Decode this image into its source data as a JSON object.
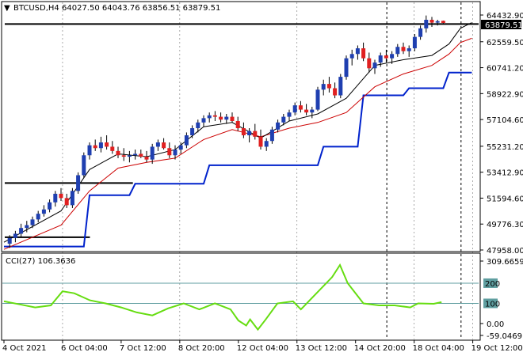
{
  "header": {
    "symbol_label": "BTCUSD,H4",
    "ohlc_text": "64027.50 64043.76 63856.51 63879.51",
    "cci_label": "CCI(27) 106.3636"
  },
  "colors": {
    "bull_body": "#1f3fb0",
    "bear_body": "#e02020",
    "wick": "#000000",
    "ma_fast": "#000000",
    "ma_slow": "#cc0000",
    "trail": "#0022cc",
    "cci_line": "#66dd11",
    "cci_level": "#5f9ea0",
    "grid": "#000000"
  },
  "chart_data": [
    {
      "type": "candlestick",
      "title": "BTCUSD,H4",
      "x_tick_labels": [
        "4 Oct 2021",
        "6 Oct 04:00",
        "7 Oct 12:00",
        "8 Oct 20:00",
        "12 Oct 04:00",
        "13 Oct 12:00",
        "14 Oct 20:00",
        "18 Oct 04:00",
        "19 Oct 12:00"
      ],
      "x_tick_indices": [
        0,
        15,
        30,
        45,
        60,
        75,
        90,
        105,
        120
      ],
      "y_tick_labels": [
        "64432.90",
        "62559.50",
        "60741.20",
        "58922.90",
        "57104.60",
        "55231.20",
        "53412.90",
        "51594.60",
        "49776.30",
        "47958.00"
      ],
      "ylim": [
        47958.0,
        64432.9
      ],
      "current_price_label": "63879.51",
      "current_price": 63879.51,
      "h_lines": [
        {
          "value": 63800,
          "x_from": 0,
          "x_to": 135
        },
        {
          "value": 52650,
          "x_from": 0,
          "x_to": 33
        },
        {
          "value": 48850,
          "x_from": 0,
          "x_to": 22
        }
      ],
      "v_grid_indices": [
        15,
        45,
        75,
        105,
        120
      ],
      "v_emphasis_indices": [
        98,
        117
      ],
      "candles": [
        [
          48400,
          49000,
          48100,
          48800
        ],
        [
          48800,
          49300,
          48500,
          49100
        ],
        [
          49100,
          49800,
          48900,
          49500
        ],
        [
          49500,
          50000,
          49200,
          49700
        ],
        [
          49700,
          50300,
          49500,
          50100
        ],
        [
          50100,
          50700,
          49900,
          50500
        ],
        [
          50500,
          51100,
          50300,
          50800
        ],
        [
          50800,
          51500,
          50600,
          51300
        ],
        [
          51300,
          52100,
          51000,
          51900
        ],
        [
          51900,
          52300,
          51400,
          51600
        ],
        [
          51600,
          51900,
          50900,
          51100
        ],
        [
          51100,
          52300,
          50900,
          52100
        ],
        [
          52100,
          53400,
          51900,
          53200
        ],
        [
          53200,
          54800,
          53000,
          54600
        ],
        [
          54600,
          55500,
          54300,
          55300
        ],
        [
          55300,
          55700,
          54900,
          55100
        ],
        [
          55100,
          55900,
          54800,
          55500
        ],
        [
          55500,
          56000,
          55000,
          55200
        ],
        [
          55200,
          55600,
          54700,
          54900
        ],
        [
          54900,
          55200,
          54400,
          54600
        ],
        [
          54600,
          55100,
          54200,
          54500
        ],
        [
          54500,
          54900,
          54100,
          54600
        ],
        [
          54600,
          55000,
          54300,
          54700
        ],
        [
          54700,
          55000,
          54400,
          54500
        ],
        [
          54500,
          54900,
          54100,
          54300
        ],
        [
          54300,
          55400,
          54000,
          55200
        ],
        [
          55200,
          55700,
          54900,
          55500
        ],
        [
          55500,
          55800,
          55000,
          55100
        ],
        [
          55100,
          55500,
          54400,
          54600
        ],
        [
          54600,
          55300,
          54300,
          55000
        ],
        [
          55000,
          55500,
          54700,
          55300
        ],
        [
          55300,
          56200,
          55100,
          56000
        ],
        [
          56000,
          56700,
          55800,
          56500
        ],
        [
          56500,
          57100,
          56200,
          56900
        ],
        [
          56900,
          57400,
          56600,
          57200
        ],
        [
          57200,
          57600,
          56900,
          57400
        ],
        [
          57400,
          57700,
          57000,
          57300
        ],
        [
          57300,
          57600,
          56900,
          57100
        ],
        [
          57100,
          57500,
          56800,
          57300
        ],
        [
          57300,
          57600,
          56900,
          57000
        ],
        [
          57000,
          57300,
          56300,
          56500
        ],
        [
          56500,
          56900,
          55800,
          56000
        ],
        [
          56000,
          56500,
          55500,
          56300
        ],
        [
          56300,
          56800,
          55700,
          55900
        ],
        [
          55900,
          56400,
          55000,
          55200
        ],
        [
          55200,
          55800,
          54900,
          55600
        ],
        [
          55600,
          56600,
          55400,
          56400
        ],
        [
          56400,
          57100,
          56200,
          56900
        ],
        [
          56900,
          57500,
          56700,
          57300
        ],
        [
          57300,
          57800,
          57000,
          57600
        ],
        [
          57600,
          58300,
          57400,
          58100
        ],
        [
          58100,
          58400,
          57600,
          57800
        ],
        [
          57800,
          58200,
          57400,
          57600
        ],
        [
          57600,
          58000,
          57200,
          57800
        ],
        [
          57800,
          59400,
          57700,
          59200
        ],
        [
          59200,
          59900,
          58800,
          59600
        ],
        [
          59600,
          60100,
          59000,
          59300
        ],
        [
          59300,
          59700,
          58600,
          58800
        ],
        [
          58800,
          60300,
          58600,
          60100
        ],
        [
          60100,
          61600,
          59900,
          61400
        ],
        [
          61400,
          62000,
          60900,
          61700
        ],
        [
          61700,
          62300,
          61300,
          62100
        ],
        [
          62100,
          62500,
          61200,
          61400
        ],
        [
          61400,
          61800,
          60400,
          60700
        ],
        [
          60700,
          61300,
          60300,
          61100
        ],
        [
          61100,
          61800,
          60800,
          61600
        ],
        [
          61600,
          62000,
          61100,
          61400
        ],
        [
          61400,
          61900,
          61000,
          61700
        ],
        [
          61700,
          62400,
          61500,
          62200
        ],
        [
          62200,
          62500,
          61700,
          61900
        ],
        [
          61900,
          62300,
          61500,
          62100
        ],
        [
          62100,
          63100,
          61900,
          62900
        ],
        [
          62900,
          63700,
          62700,
          63500
        ],
        [
          63500,
          64400,
          63200,
          64100
        ],
        [
          64100,
          64300,
          63600,
          63900
        ],
        [
          63900,
          64100,
          63700,
          64000
        ],
        [
          64027.5,
          64043.76,
          63856.51,
          63879.51
        ]
      ],
      "candle_x_indices": [
        1,
        2,
        3,
        4,
        5,
        6,
        7,
        8,
        9,
        10,
        11,
        12,
        13,
        14,
        15,
        16,
        17,
        18,
        19,
        20,
        21,
        22,
        23,
        24,
        25,
        26,
        27,
        28,
        29,
        30,
        31,
        32,
        33,
        34,
        35,
        36,
        37,
        38,
        39,
        40,
        41,
        42,
        43,
        44,
        45,
        46,
        47,
        48,
        49,
        50,
        51,
        52,
        53,
        54,
        55,
        56,
        57,
        58,
        59,
        60,
        61,
        62,
        63,
        64,
        65,
        66,
        67,
        68,
        69,
        70,
        71,
        72,
        73,
        74,
        75,
        76,
        77
      ],
      "ma_fast": [
        [
          0,
          48500
        ],
        [
          10,
          50700
        ],
        [
          15,
          53600
        ],
        [
          20,
          54700
        ],
        [
          25,
          54500
        ],
        [
          30,
          55000
        ],
        [
          35,
          56600
        ],
        [
          40,
          56900
        ],
        [
          45,
          55800
        ],
        [
          50,
          57000
        ],
        [
          55,
          57500
        ],
        [
          60,
          58600
        ],
        [
          65,
          60900
        ],
        [
          70,
          61300
        ],
        [
          75,
          61600
        ],
        [
          78,
          62400
        ],
        [
          80,
          63500
        ],
        [
          82,
          63900
        ]
      ],
      "ma_slow": [
        [
          0,
          48000
        ],
        [
          10,
          49700
        ],
        [
          15,
          52100
        ],
        [
          20,
          53700
        ],
        [
          25,
          54100
        ],
        [
          30,
          54400
        ],
        [
          35,
          55700
        ],
        [
          40,
          56400
        ],
        [
          45,
          55900
        ],
        [
          50,
          56500
        ],
        [
          55,
          56900
        ],
        [
          60,
          57600
        ],
        [
          65,
          59400
        ],
        [
          70,
          60300
        ],
        [
          75,
          60900
        ],
        [
          78,
          61700
        ],
        [
          80,
          62500
        ],
        [
          82,
          62800
        ]
      ],
      "trail_line": [
        [
          0,
          48200
        ],
        [
          14,
          48200
        ],
        [
          15,
          51800
        ],
        [
          22,
          51800
        ],
        [
          23,
          52600
        ],
        [
          35,
          52600
        ],
        [
          36,
          53900
        ],
        [
          55,
          53900
        ],
        [
          56,
          55200
        ],
        [
          62,
          55200
        ],
        [
          63,
          58800
        ],
        [
          70,
          58800
        ],
        [
          71,
          59300
        ],
        [
          77,
          59300
        ],
        [
          78,
          60400
        ],
        [
          82,
          60400
        ]
      ]
    },
    {
      "type": "line",
      "title": "CCI(27) 106.3636",
      "y_tick_labels": [
        "309.6659",
        "200",
        "100",
        "0.00",
        "-59.0469"
      ],
      "levels": [
        200,
        100
      ],
      "ylim": [
        -59.0469,
        309.6659
      ],
      "values": [
        [
          0,
          110
        ],
        [
          4,
          95
        ],
        [
          8,
          80
        ],
        [
          12,
          90
        ],
        [
          15,
          160
        ],
        [
          18,
          150
        ],
        [
          22,
          115
        ],
        [
          26,
          100
        ],
        [
          30,
          80
        ],
        [
          34,
          55
        ],
        [
          38,
          40
        ],
        [
          42,
          75
        ],
        [
          46,
          100
        ],
        [
          50,
          70
        ],
        [
          54,
          100
        ],
        [
          58,
          70
        ],
        [
          60,
          15
        ],
        [
          62,
          -10
        ],
        [
          63,
          20
        ],
        [
          65,
          -30
        ],
        [
          67,
          20
        ],
        [
          70,
          100
        ],
        [
          74,
          110
        ],
        [
          76,
          70
        ],
        [
          80,
          150
        ],
        [
          84,
          230
        ],
        [
          86,
          290
        ],
        [
          88,
          200
        ],
        [
          92,
          100
        ],
        [
          96,
          90
        ],
        [
          100,
          90
        ],
        [
          104,
          80
        ],
        [
          106,
          100
        ],
        [
          110,
          98
        ],
        [
          112,
          106
        ]
      ]
    }
  ]
}
